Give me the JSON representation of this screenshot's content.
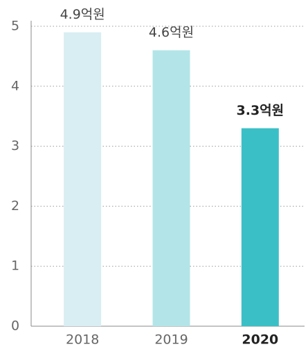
{
  "chart_data": {
    "type": "bar",
    "categories": [
      "2018",
      "2019",
      "2020"
    ],
    "values": [
      4.9,
      4.6,
      3.3
    ],
    "value_labels": [
      "4.9억원",
      "4.6억원",
      "3.3억원"
    ],
    "colors": [
      "#d9eef2",
      "#b3e5e8",
      "#3bbfc6"
    ],
    "highlight": 2,
    "ylim": [
      0,
      5
    ],
    "yticks": [
      0,
      1,
      2,
      3,
      4,
      5
    ],
    "grid": true
  }
}
